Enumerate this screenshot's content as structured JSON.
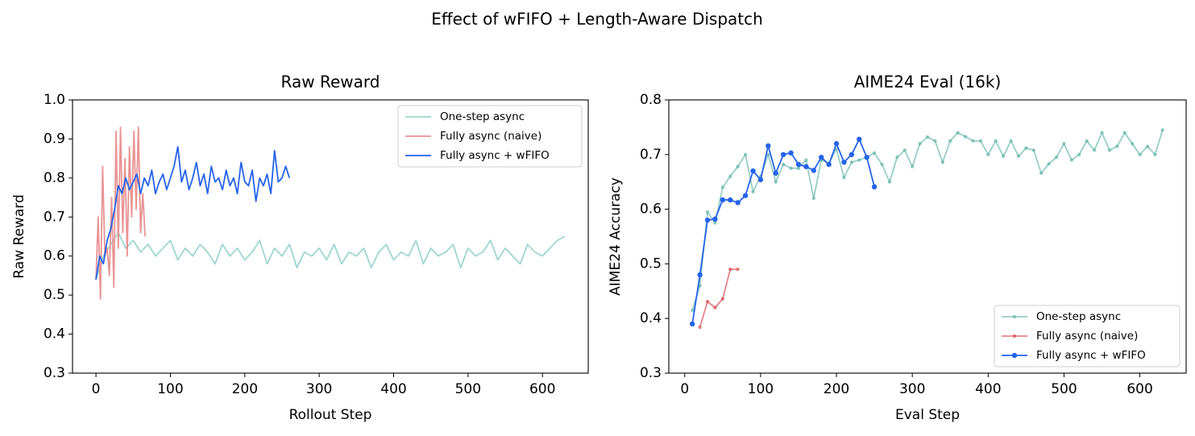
{
  "title": "Effect of wFIFO + Length-Aware Dispatch",
  "chart_data": [
    {
      "type": "line",
      "title": "Raw Reward",
      "xlabel": "Rollout Step",
      "ylabel": "Raw Reward",
      "xlim": [
        -31.5,
        661.5
      ],
      "ylim": [
        0.3,
        1.0
      ],
      "xticks": [
        0,
        100,
        200,
        300,
        400,
        500,
        600
      ],
      "yticks": [
        0.3,
        0.4,
        0.5,
        0.6,
        0.7,
        0.8,
        0.9,
        {
          "value": 1.0,
          "label": "1.0"
        }
      ],
      "legend": "upper right",
      "markers": false,
      "series": [
        {
          "name": "One-step async",
          "color": "#93d1cb",
          "alpha": 0.9,
          "x": [
            0,
            10,
            20,
            30,
            40,
            50,
            60,
            70,
            80,
            90,
            100,
            110,
            120,
            130,
            140,
            150,
            160,
            170,
            180,
            190,
            200,
            210,
            220,
            230,
            240,
            250,
            260,
            270,
            280,
            290,
            300,
            310,
            320,
            330,
            340,
            350,
            360,
            370,
            380,
            390,
            400,
            410,
            420,
            430,
            440,
            450,
            460,
            470,
            480,
            490,
            500,
            510,
            520,
            530,
            540,
            550,
            560,
            570,
            580,
            590,
            600,
            610,
            620,
            630
          ],
          "values": [
            0.54,
            0.6,
            0.63,
            0.66,
            0.62,
            0.64,
            0.61,
            0.63,
            0.6,
            0.62,
            0.64,
            0.59,
            0.62,
            0.6,
            0.63,
            0.61,
            0.58,
            0.63,
            0.6,
            0.62,
            0.59,
            0.61,
            0.64,
            0.58,
            0.62,
            0.6,
            0.63,
            0.57,
            0.61,
            0.6,
            0.62,
            0.59,
            0.63,
            0.58,
            0.61,
            0.6,
            0.62,
            0.57,
            0.61,
            0.63,
            0.59,
            0.61,
            0.6,
            0.64,
            0.58,
            0.62,
            0.6,
            0.61,
            0.63,
            0.57,
            0.62,
            0.6,
            0.61,
            0.64,
            0.59,
            0.62,
            0.6,
            0.58,
            0.63,
            0.61,
            0.6,
            0.62,
            0.64,
            0.65
          ]
        },
        {
          "name": "Fully async (naive)",
          "color": "#e88e8e",
          "alpha": 0.95,
          "x": [
            0,
            3,
            6,
            9,
            12,
            15,
            18,
            21,
            24,
            27,
            30,
            33,
            36,
            39,
            42,
            45,
            48,
            51,
            54,
            57,
            60,
            63,
            66
          ],
          "values": [
            0.54,
            0.7,
            0.49,
            0.83,
            0.6,
            0.62,
            0.55,
            0.75,
            0.52,
            0.92,
            0.62,
            0.93,
            0.66,
            0.85,
            0.6,
            0.88,
            0.7,
            0.92,
            0.72,
            0.93,
            0.66,
            0.76,
            0.65
          ]
        },
        {
          "name": "Fully async + wFIFO",
          "color": "#2563eb",
          "alpha": 1,
          "x": [
            0,
            5,
            10,
            15,
            20,
            25,
            30,
            35,
            40,
            45,
            50,
            55,
            60,
            65,
            70,
            75,
            80,
            85,
            90,
            95,
            100,
            105,
            110,
            115,
            120,
            125,
            130,
            135,
            140,
            145,
            150,
            155,
            160,
            165,
            170,
            175,
            180,
            185,
            190,
            195,
            200,
            205,
            210,
            215,
            220,
            225,
            230,
            235,
            240,
            245,
            250,
            255,
            260
          ],
          "values": [
            0.54,
            0.6,
            0.58,
            0.64,
            0.67,
            0.72,
            0.78,
            0.76,
            0.8,
            0.77,
            0.79,
            0.81,
            0.76,
            0.8,
            0.78,
            0.82,
            0.76,
            0.79,
            0.81,
            0.77,
            0.8,
            0.83,
            0.88,
            0.79,
            0.82,
            0.77,
            0.8,
            0.84,
            0.78,
            0.81,
            0.76,
            0.83,
            0.79,
            0.8,
            0.77,
            0.82,
            0.78,
            0.8,
            0.76,
            0.84,
            0.79,
            0.78,
            0.82,
            0.74,
            0.8,
            0.78,
            0.81,
            0.76,
            0.87,
            0.79,
            0.8,
            0.83,
            0.8
          ]
        }
      ]
    },
    {
      "type": "line",
      "title": "AIME24 Eval (16k)",
      "xlabel": "Eval Step",
      "ylabel": "AIME24 Accuracy",
      "xlim": [
        -21,
        661
      ],
      "ylim": [
        0.3,
        0.8
      ],
      "xticks": [
        0,
        100,
        200,
        300,
        400,
        500,
        600
      ],
      "yticks": [
        0.3,
        0.4,
        0.5,
        0.6,
        0.7,
        0.8
      ],
      "legend": "lower right",
      "markers": true,
      "series": [
        {
          "name": "One-step async",
          "color": "#5fb3a8",
          "alpha": 0.65,
          "x": [
            10,
            20,
            30,
            40,
            50,
            60,
            70,
            80,
            90,
            100,
            110,
            120,
            130,
            140,
            150,
            160,
            170,
            180,
            190,
            200,
            210,
            220,
            230,
            240,
            250,
            260,
            270,
            280,
            290,
            300,
            310,
            320,
            330,
            340,
            350,
            360,
            370,
            380,
            390,
            400,
            410,
            420,
            430,
            440,
            450,
            460,
            470,
            480,
            490,
            500,
            510,
            520,
            530,
            540,
            550,
            560,
            570,
            580,
            590,
            600,
            610,
            620,
            630
          ],
          "values": [
            0.415,
            0.46,
            0.595,
            0.575,
            0.64,
            0.66,
            0.678,
            0.7,
            0.632,
            0.66,
            0.7,
            0.65,
            0.682,
            0.675,
            0.675,
            0.69,
            0.62,
            0.69,
            0.684,
            0.71,
            0.658,
            0.686,
            0.69,
            0.695,
            0.703,
            0.682,
            0.65,
            0.695,
            0.708,
            0.678,
            0.72,
            0.732,
            0.725,
            0.686,
            0.725,
            0.74,
            0.733,
            0.725,
            0.725,
            0.7,
            0.725,
            0.697,
            0.725,
            0.697,
            0.712,
            0.708,
            0.666,
            0.683,
            0.695,
            0.72,
            0.69,
            0.7,
            0.725,
            0.708,
            0.74,
            0.708,
            0.715,
            0.74,
            0.72,
            0.7,
            0.715,
            0.7,
            0.745
          ]
        },
        {
          "name": "Fully async (naive)",
          "color": "#d9434a",
          "alpha": 0.65,
          "x": [
            20,
            30,
            40,
            50,
            60,
            70
          ],
          "values": [
            0.384,
            0.431,
            0.42,
            0.436,
            0.49,
            0.49
          ]
        },
        {
          "name": "Fully async + wFIFO",
          "color": "#2563eb",
          "alpha": 1,
          "x": [
            10,
            20,
            30,
            40,
            50,
            60,
            70,
            80,
            90,
            100,
            110,
            120,
            130,
            140,
            150,
            160,
            170,
            180,
            190,
            200,
            210,
            220,
            230,
            240,
            250
          ],
          "values": [
            0.39,
            0.48,
            0.58,
            0.582,
            0.617,
            0.617,
            0.612,
            0.625,
            0.67,
            0.654,
            0.716,
            0.666,
            0.7,
            0.703,
            0.682,
            0.678,
            0.671,
            0.695,
            0.682,
            0.72,
            0.686,
            0.7,
            0.728,
            0.695,
            0.641
          ]
        }
      ]
    }
  ]
}
